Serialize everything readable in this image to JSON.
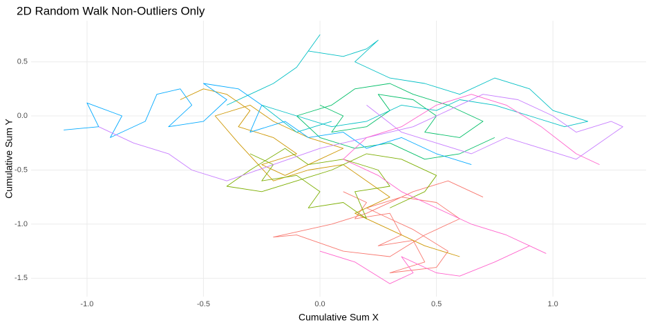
{
  "chart_data": {
    "type": "line",
    "title": "2D Random Walk Non-Outliers Only",
    "xlabel": "Cumulative Sum X",
    "ylabel": "Cumulative Sum Y",
    "xlim": [
      -1.24,
      1.4
    ],
    "ylim": [
      -1.67,
      0.88
    ],
    "xticks": [
      {
        "value": -1.0,
        "label": "-1.0"
      },
      -0.5,
      {
        "value": 0.0,
        "label": "0.0"
      },
      0.5,
      {
        "value": 1.0,
        "label": "1.0"
      }
    ],
    "yticks": [
      0.5,
      {
        "value": 0.0,
        "label": "0.0"
      },
      -0.5,
      {
        "value": -1.0,
        "label": "-1.0"
      },
      -1.5
    ],
    "grid": true,
    "series": [
      {
        "color": "#F8766D",
        "x": [
          0.1,
          0.2,
          0.15,
          0.3,
          0.35,
          0.25,
          0.4,
          0.45,
          0.3,
          0.5,
          0.55,
          0.4,
          0.3,
          0.2,
          0.35,
          0.5,
          0.6,
          0.45,
          0.3,
          0.1,
          -0.1,
          -0.2,
          0.05,
          0.2,
          0.4,
          0.55,
          0.7
        ],
        "y": [
          -0.7,
          -0.8,
          -0.95,
          -0.9,
          -1.1,
          -1.2,
          -1.15,
          -1.35,
          -1.45,
          -1.4,
          -1.25,
          -1.05,
          -0.95,
          -0.85,
          -0.75,
          -0.8,
          -0.95,
          -1.1,
          -1.3,
          -1.25,
          -1.1,
          -1.12,
          -1.0,
          -0.9,
          -0.7,
          -0.6,
          -0.75
        ]
      },
      {
        "color": "#CD9600",
        "x": [
          -0.6,
          -0.5,
          -0.4,
          -0.3,
          -0.35,
          -0.2,
          -0.1,
          -0.25,
          -0.15,
          0.0,
          0.1,
          -0.05,
          -0.2,
          -0.3,
          -0.45,
          -0.35,
          -0.2,
          -0.05,
          0.1,
          0.2,
          0.3,
          0.15,
          0.3,
          0.45,
          0.6
        ],
        "y": [
          0.15,
          0.25,
          0.2,
          0.05,
          -0.1,
          -0.2,
          -0.35,
          -0.45,
          -0.55,
          -0.4,
          -0.3,
          -0.2,
          -0.05,
          0.1,
          0.0,
          -0.25,
          -0.6,
          -0.5,
          -0.45,
          -0.6,
          -0.75,
          -0.9,
          -1.05,
          -1.2,
          -1.3
        ]
      },
      {
        "color": "#7CAE00",
        "x": [
          -0.3,
          -0.2,
          -0.25,
          -0.1,
          0.0,
          -0.05,
          0.1,
          0.2,
          0.15,
          0.3,
          0.25,
          0.1,
          -0.05,
          -0.15,
          -0.3,
          -0.4,
          -0.25,
          -0.1,
          0.05,
          0.2,
          0.35,
          0.5,
          0.45,
          0.3
        ],
        "y": [
          -0.35,
          -0.45,
          -0.6,
          -0.55,
          -0.7,
          -0.85,
          -0.8,
          -0.95,
          -0.7,
          -0.65,
          -0.5,
          -0.4,
          -0.45,
          -0.3,
          -0.5,
          -0.65,
          -0.7,
          -0.6,
          -0.5,
          -0.35,
          -0.4,
          -0.55,
          -0.7,
          -0.85
        ]
      },
      {
        "color": "#00BE67",
        "x": [
          0.0,
          0.1,
          0.05,
          0.2,
          0.3,
          0.25,
          0.4,
          0.5,
          0.45,
          0.6,
          0.7,
          0.55,
          0.4,
          0.3,
          0.15,
          0.05,
          -0.1,
          0.0,
          0.15,
          0.3,
          0.45,
          0.6,
          0.75
        ],
        "y": [
          0.1,
          0.0,
          -0.15,
          -0.1,
          0.05,
          0.2,
          0.15,
          0.0,
          -0.15,
          -0.2,
          -0.05,
          0.1,
          0.2,
          0.3,
          0.25,
          0.1,
          0.0,
          -0.2,
          -0.3,
          -0.25,
          -0.4,
          -0.35,
          -0.2
        ]
      },
      {
        "color": "#00BFC4",
        "x": [
          -0.4,
          -0.3,
          -0.2,
          -0.1,
          0.0,
          -0.05,
          0.1,
          0.2,
          0.25,
          0.15,
          0.3,
          0.45,
          0.6,
          0.75,
          0.9,
          1.0,
          1.15,
          1.05,
          0.9,
          0.75,
          0.6,
          0.5,
          0.35,
          0.2,
          0.05,
          -0.1,
          -0.25,
          -0.1,
          0.05
        ],
        "y": [
          0.1,
          0.2,
          0.3,
          0.45,
          0.75,
          0.6,
          0.55,
          0.62,
          0.7,
          0.5,
          0.35,
          0.3,
          0.2,
          0.35,
          0.25,
          0.05,
          -0.05,
          -0.1,
          0.0,
          0.1,
          0.15,
          0.05,
          0.1,
          -0.05,
          -0.1,
          0.0,
          0.1,
          -0.15,
          -0.05
        ]
      },
      {
        "color": "#00A9FF",
        "x": [
          -1.1,
          -0.95,
          -1.0,
          -0.85,
          -0.9,
          -0.75,
          -0.7,
          -0.6,
          -0.55,
          -0.65,
          -0.5,
          -0.4,
          -0.5,
          -0.35,
          -0.25,
          -0.3,
          -0.15,
          -0.05,
          0.1,
          0.2,
          0.35,
          0.5,
          0.65
        ],
        "y": [
          -0.13,
          -0.1,
          0.12,
          0.0,
          -0.2,
          -0.05,
          0.2,
          0.25,
          0.1,
          -0.1,
          -0.05,
          0.15,
          0.3,
          0.25,
          0.1,
          -0.15,
          -0.05,
          -0.2,
          -0.15,
          -0.3,
          -0.2,
          -0.35,
          -0.45
        ]
      },
      {
        "color": "#C77CFF",
        "x": [
          -0.95,
          -0.8,
          -0.65,
          -0.55,
          -0.4,
          -0.2,
          0.0,
          0.2,
          0.4,
          0.55,
          0.7,
          0.85,
          1.0,
          1.1,
          1.25,
          1.3,
          1.2,
          1.1,
          0.95,
          0.8,
          0.65,
          0.5,
          0.35,
          0.2
        ],
        "y": [
          -0.1,
          -0.25,
          -0.35,
          -0.5,
          -0.6,
          -0.45,
          -0.3,
          -0.2,
          -0.1,
          0.05,
          0.2,
          0.15,
          0.0,
          -0.15,
          -0.05,
          -0.1,
          -0.25,
          -0.4,
          -0.3,
          -0.2,
          -0.35,
          -0.25,
          -0.15,
          0.1
        ]
      },
      {
        "color": "#FF61CC",
        "x": [
          0.0,
          0.15,
          0.3,
          0.4,
          0.35,
          0.5,
          0.6,
          0.75,
          0.9,
          0.97,
          0.8,
          0.65,
          0.5,
          0.35,
          0.25,
          0.1,
          0.2,
          0.35,
          0.5,
          0.65,
          0.8,
          0.95,
          1.1,
          1.2
        ],
        "y": [
          -1.25,
          -1.35,
          -1.55,
          -1.45,
          -1.3,
          -1.45,
          -1.48,
          -1.35,
          -1.2,
          -1.27,
          -1.1,
          -1.0,
          -0.85,
          -0.7,
          -0.55,
          -0.4,
          -0.2,
          -0.1,
          0.1,
          0.2,
          0.1,
          -0.1,
          -0.35,
          -0.45
        ]
      }
    ]
  }
}
